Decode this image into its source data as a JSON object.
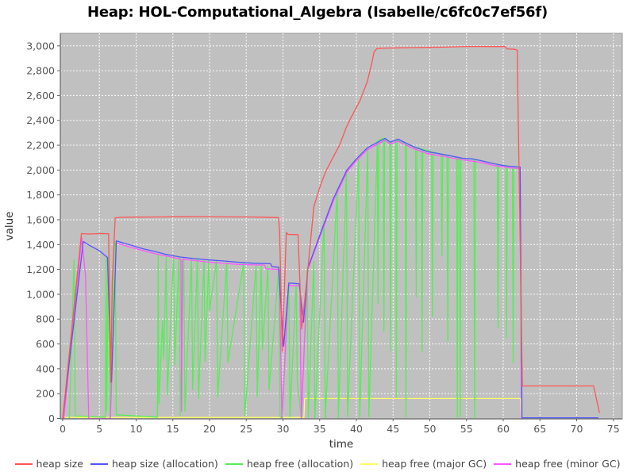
{
  "title": "Heap: HOL-Computational_Algebra (Isabelle/c6fc0c7ef56f)",
  "chart_data": {
    "type": "line",
    "title": "Heap: HOL-Computational_Algebra (Isabelle/c6fc0c7ef56f)",
    "xlabel": "time",
    "ylabel": "value",
    "xlim": [
      0,
      76.2
    ],
    "ylim": [
      0,
      3100
    ],
    "x_ticks": [
      0,
      5,
      10,
      15,
      20,
      25,
      30,
      35,
      40,
      45,
      50,
      55,
      60,
      65,
      70,
      75
    ],
    "y_ticks": [
      0,
      200,
      400,
      600,
      800,
      1000,
      1200,
      1400,
      1600,
      1800,
      2000,
      2200,
      2400,
      2600,
      2800,
      3000
    ],
    "grid": true,
    "legend_position": "bottom",
    "plot_bg": "#c0c0c0",
    "grid_color": "#ffffff",
    "series": [
      {
        "name": "heap free (major GC)",
        "legend_index": 3,
        "color": "#ffff66",
        "points": [
          [
            0.3,
            8
          ],
          [
            32.85,
            8
          ],
          [
            32.95,
            160
          ],
          [
            62.35,
            160
          ],
          [
            62.45,
            2
          ],
          [
            72.9,
            2
          ]
        ]
      },
      {
        "name": "heap free (allocation)",
        "legend_index": 2,
        "color": "#55ee55",
        "points": [
          [
            0.9,
            0
          ],
          [
            1.55,
            1275
          ],
          [
            1.7,
            20
          ],
          [
            5.8,
            10
          ],
          [
            5.9,
            1295
          ],
          [
            6.0,
            60
          ],
          [
            6.2,
            1300
          ],
          [
            6.45,
            5
          ],
          [
            7.0,
            1425
          ],
          [
            7.15,
            1420
          ],
          [
            7.3,
            30
          ],
          [
            12.9,
            10
          ],
          [
            13.0,
            1320
          ],
          [
            13.1,
            115
          ],
          [
            13.6,
            790
          ],
          [
            13.75,
            480
          ],
          [
            14.1,
            1315
          ],
          [
            14.25,
            190
          ],
          [
            15.1,
            1310
          ],
          [
            15.25,
            430
          ],
          [
            15.85,
            1305
          ],
          [
            16.0,
            25
          ],
          [
            16.5,
            1298
          ],
          [
            16.65,
            60
          ],
          [
            17.55,
            1292
          ],
          [
            17.7,
            230
          ],
          [
            18.35,
            1288
          ],
          [
            18.5,
            160
          ],
          [
            19.25,
            1282
          ],
          [
            19.4,
            460
          ],
          [
            19.9,
            1278
          ],
          [
            20.0,
            870
          ],
          [
            20.95,
            1272
          ],
          [
            21.1,
            170
          ],
          [
            22.35,
            1266
          ],
          [
            22.5,
            450
          ],
          [
            24.65,
            1256
          ],
          [
            24.8,
            20
          ],
          [
            26.35,
            1250
          ],
          [
            26.5,
            175
          ],
          [
            27.05,
            1248
          ],
          [
            27.2,
            555
          ],
          [
            27.95,
            1222
          ],
          [
            28.1,
            230
          ],
          [
            29.45,
            1218
          ],
          [
            29.6,
            15
          ],
          [
            29.9,
            0
          ],
          [
            30.8,
            1085
          ],
          [
            30.95,
            15
          ],
          [
            31.8,
            1086
          ],
          [
            31.95,
            300
          ],
          [
            32.5,
            0
          ],
          [
            33.3,
            1205
          ],
          [
            33.45,
            10
          ],
          [
            34.2,
            1268
          ],
          [
            34.35,
            5
          ],
          [
            35.6,
            1590
          ],
          [
            35.75,
            5
          ],
          [
            37.4,
            1840
          ],
          [
            37.55,
            5
          ],
          [
            38.65,
            2000
          ],
          [
            38.8,
            15
          ],
          [
            40.3,
            2100
          ],
          [
            40.45,
            10
          ],
          [
            41.55,
            2180
          ],
          [
            41.7,
            15
          ],
          [
            42.85,
            2235
          ],
          [
            42.95,
            925
          ],
          [
            43.05,
            2240
          ],
          [
            43.65,
            2255
          ],
          [
            43.75,
            700
          ],
          [
            43.85,
            2250
          ],
          [
            44.55,
            2225
          ],
          [
            44.65,
            545
          ],
          [
            44.75,
            2222
          ],
          [
            45.35,
            2245
          ],
          [
            45.45,
            170
          ],
          [
            45.55,
            2240
          ],
          [
            46.65,
            2212
          ],
          [
            46.75,
            15
          ],
          [
            46.85,
            2210
          ],
          [
            48.05,
            2185
          ],
          [
            48.15,
            980
          ],
          [
            48.25,
            2182
          ],
          [
            48.85,
            2170
          ],
          [
            48.95,
            540
          ],
          [
            49.05,
            2168
          ],
          [
            50.25,
            2146
          ],
          [
            50.35,
            820
          ],
          [
            50.45,
            2144
          ],
          [
            51.55,
            2128
          ],
          [
            51.65,
            1310
          ],
          [
            51.75,
            2126
          ],
          [
            52.35,
            2122
          ],
          [
            52.45,
            620
          ],
          [
            52.55,
            2120
          ],
          [
            53.65,
            2100
          ],
          [
            53.75,
            10
          ],
          [
            53.85,
            2098
          ],
          [
            54.05,
            2096
          ],
          [
            54.15,
            15
          ],
          [
            54.25,
            2095
          ],
          [
            56.0,
            2088
          ],
          [
            56.1,
            5
          ],
          [
            56.2,
            2086
          ],
          [
            59.2,
            2046
          ],
          [
            59.3,
            730
          ],
          [
            59.4,
            2044
          ],
          [
            60.35,
            2035
          ],
          [
            60.45,
            650
          ],
          [
            60.55,
            2033
          ],
          [
            61.25,
            2028
          ],
          [
            61.35,
            450
          ],
          [
            61.45,
            2026
          ],
          [
            62.3,
            2023
          ],
          [
            62.4,
            455
          ],
          [
            62.5,
            455
          ],
          [
            62.55,
            0
          ]
        ]
      },
      {
        "name": "heap free (minor GC)",
        "legend_index": 4,
        "color": "#ff55ff",
        "points": [
          [
            0.15,
            0
          ],
          [
            2.6,
            1455
          ],
          [
            3.1,
            1150
          ],
          [
            3.55,
            0
          ],
          [
            6.35,
            0
          ],
          [
            6.5,
            5
          ],
          [
            7.3,
            1415
          ],
          [
            9,
            1382
          ],
          [
            12.5,
            1328
          ],
          [
            16.1,
            1284
          ],
          [
            16.2,
            60
          ],
          [
            16.3,
            1283
          ],
          [
            20,
            1258
          ],
          [
            24,
            1240
          ],
          [
            27.5,
            1235
          ],
          [
            27.7,
            1205
          ],
          [
            29.5,
            1200
          ],
          [
            29.85,
            0
          ],
          [
            30.75,
            1072
          ],
          [
            32.3,
            1068
          ],
          [
            32.5,
            0
          ],
          [
            33.35,
            1195
          ],
          [
            35,
            1458
          ],
          [
            36.9,
            1758
          ],
          [
            38.7,
            1983
          ],
          [
            40,
            2075
          ],
          [
            41.5,
            2165
          ],
          [
            43.9,
            2240
          ],
          [
            44.6,
            2210
          ],
          [
            45.7,
            2232
          ],
          [
            47.7,
            2175
          ],
          [
            49.7,
            2132
          ],
          [
            51.9,
            2110
          ],
          [
            54.5,
            2082
          ],
          [
            57,
            2062
          ],
          [
            58.8,
            2036
          ],
          [
            60.6,
            2020
          ],
          [
            62.3,
            2012
          ],
          [
            62.5,
            0
          ]
        ]
      },
      {
        "name": "heap size (allocation)",
        "legend_index": 1,
        "color": "#5555ff",
        "points": [
          [
            0,
            0
          ],
          [
            2.8,
            1425
          ],
          [
            3.7,
            1392
          ],
          [
            5.0,
            1350
          ],
          [
            6.1,
            1296
          ],
          [
            6.65,
            295
          ],
          [
            7.3,
            1430
          ],
          [
            9,
            1400
          ],
          [
            11,
            1365
          ],
          [
            12.5,
            1345
          ],
          [
            14,
            1322
          ],
          [
            16,
            1300
          ],
          [
            18,
            1287
          ],
          [
            20,
            1276
          ],
          [
            22,
            1268
          ],
          [
            24,
            1257
          ],
          [
            26,
            1250
          ],
          [
            28.3,
            1246
          ],
          [
            28.5,
            1222
          ],
          [
            29.4,
            1218
          ],
          [
            30.1,
            580
          ],
          [
            30.8,
            1090
          ],
          [
            32.2,
            1085
          ],
          [
            32.8,
            775
          ],
          [
            33.4,
            1212
          ],
          [
            35,
            1475
          ],
          [
            36.9,
            1775
          ],
          [
            38.7,
            2000
          ],
          [
            40,
            2090
          ],
          [
            41.5,
            2180
          ],
          [
            43.9,
            2255
          ],
          [
            44.6,
            2225
          ],
          [
            45.7,
            2248
          ],
          [
            47.7,
            2190
          ],
          [
            49.7,
            2148
          ],
          [
            51.9,
            2125
          ],
          [
            54.5,
            2095
          ],
          [
            55.8,
            2090
          ],
          [
            57,
            2075
          ],
          [
            58.8,
            2050
          ],
          [
            59.5,
            2042
          ],
          [
            60.6,
            2032
          ],
          [
            62.3,
            2025
          ],
          [
            62.55,
            5
          ],
          [
            72.9,
            5
          ]
        ]
      },
      {
        "name": "heap size",
        "legend_index": 0,
        "color": "#ff5555",
        "points": [
          [
            0,
            0
          ],
          [
            2.55,
            1488
          ],
          [
            3.5,
            1485
          ],
          [
            5.0,
            1488
          ],
          [
            6.25,
            1487
          ],
          [
            6.55,
            290
          ],
          [
            6.75,
            1100
          ],
          [
            7.15,
            1615
          ],
          [
            8,
            1620
          ],
          [
            10,
            1621
          ],
          [
            13,
            1622
          ],
          [
            16,
            1624
          ],
          [
            19,
            1625
          ],
          [
            22,
            1623
          ],
          [
            25,
            1622
          ],
          [
            27,
            1621
          ],
          [
            29.4,
            1617
          ],
          [
            29.55,
            1500
          ],
          [
            29.9,
            540
          ],
          [
            30.45,
            1497
          ],
          [
            30.7,
            1482
          ],
          [
            32.05,
            1480
          ],
          [
            32.55,
            720
          ],
          [
            33.3,
            1145
          ],
          [
            34.2,
            1705
          ],
          [
            35.0,
            1860
          ],
          [
            35.8,
            1985
          ],
          [
            36.8,
            2100
          ],
          [
            37.7,
            2200
          ],
          [
            38.6,
            2340
          ],
          [
            39.2,
            2415
          ],
          [
            40.5,
            2560
          ],
          [
            41.5,
            2715
          ],
          [
            42.2,
            2890
          ],
          [
            42.4,
            2950
          ],
          [
            42.8,
            2978
          ],
          [
            44,
            2982
          ],
          [
            46,
            2984
          ],
          [
            48,
            2986
          ],
          [
            50,
            2988
          ],
          [
            52,
            2990
          ],
          [
            54,
            2993
          ],
          [
            56,
            2995
          ],
          [
            58,
            2994
          ],
          [
            60.2,
            2995
          ],
          [
            60.5,
            2976
          ],
          [
            61.6,
            2972
          ],
          [
            61.9,
            2965
          ],
          [
            62.6,
            262
          ],
          [
            72.3,
            262
          ],
          [
            73.1,
            48
          ]
        ]
      }
    ],
    "legend": [
      {
        "label": "heap size",
        "color": "#ff5555"
      },
      {
        "label": "heap size (allocation)",
        "color": "#5555ff"
      },
      {
        "label": "heap free (allocation)",
        "color": "#55ee55"
      },
      {
        "label": "heap free (major GC)",
        "color": "#ffff66"
      },
      {
        "label": "heap free (minor GC)",
        "color": "#ff55ff"
      }
    ]
  }
}
